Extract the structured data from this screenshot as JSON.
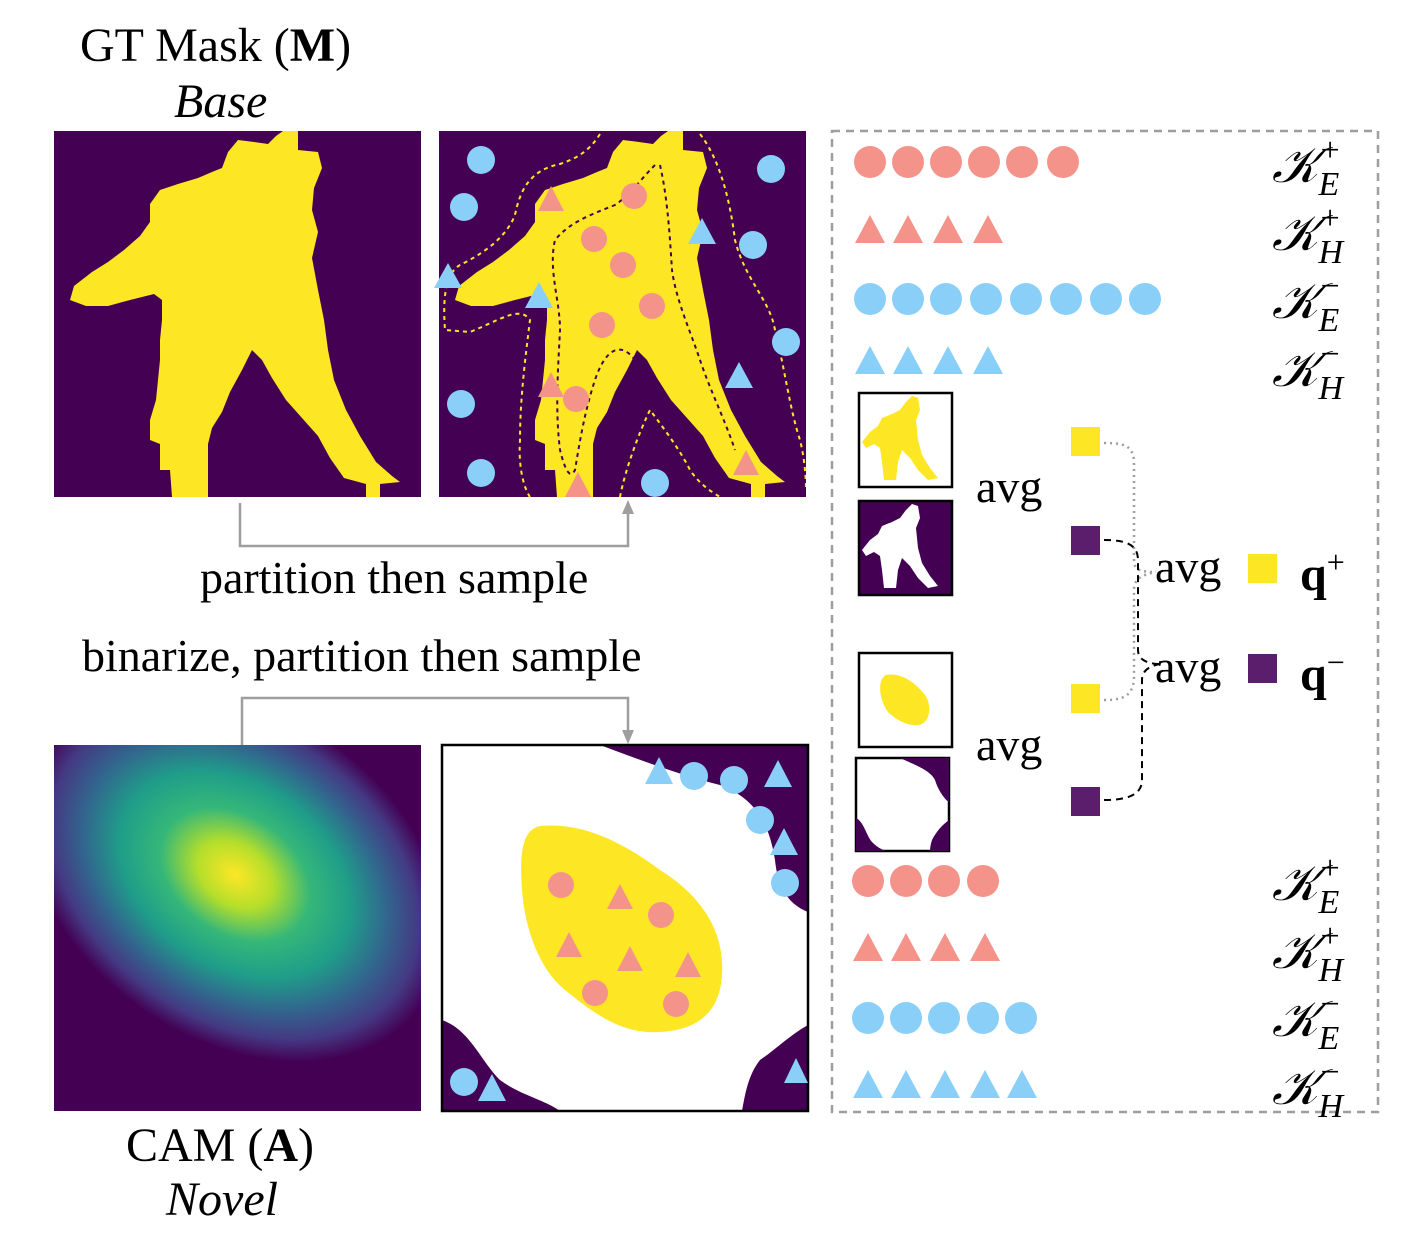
{
  "top_panel": {
    "title": "GT Mask (",
    "title_symbol": "M",
    "title_close": ")",
    "subtitle": "Base"
  },
  "bottom_panel": {
    "title": "CAM (",
    "title_symbol": "A",
    "title_close": ")",
    "subtitle": "Novel"
  },
  "arrows": {
    "top_label": "partition then sample",
    "bottom_label": "binarize, partition then sample"
  },
  "right_box": {
    "avg_label": "avg",
    "q_symbol": "q",
    "q_pos_sign": "+",
    "q_neg_sign": "−",
    "sets": [
      {
        "base": "𝒦",
        "sup": "+",
        "sub": "E"
      },
      {
        "base": "𝒦",
        "sup": "+",
        "sub": "H"
      },
      {
        "base": "𝒦",
        "sup": "−",
        "sub": "E"
      },
      {
        "base": "𝒦",
        "sup": "−",
        "sub": "H"
      }
    ]
  },
  "colors": {
    "purple": "#440154",
    "yellow": "#FDE725",
    "salmon": "#F4938A",
    "blue": "#89CFF8",
    "gray": "#9E9E9E",
    "dark_purple_square": "#5A1E6C"
  },
  "sample_counts": {
    "top": {
      "pos_easy": 6,
      "pos_hard": 4,
      "neg_easy": 8,
      "neg_hard": 4
    },
    "bottom": {
      "pos_easy": 4,
      "pos_hard": 4,
      "neg_easy": 5,
      "neg_hard": 5
    }
  },
  "icons": {
    "pos_easy": "salmon-circle-icon",
    "pos_hard": "salmon-triangle-icon",
    "neg_easy": "blue-circle-icon",
    "neg_hard": "blue-triangle-icon"
  }
}
